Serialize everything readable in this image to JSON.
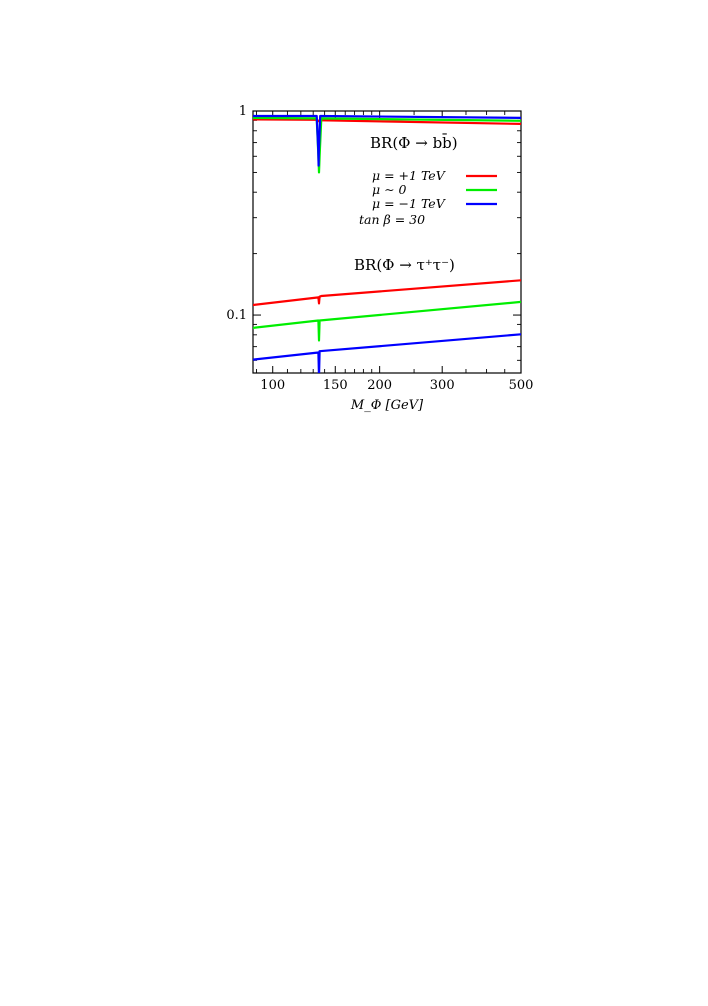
{
  "chart_data": {
    "type": "line",
    "x_scale": "log",
    "y_scale": "log",
    "xlim": [
      88,
      500
    ],
    "ylim": [
      0.052,
      1.0
    ],
    "xlabel": "M_Φ [GeV]",
    "ylabel": "",
    "x_ticks": [
      {
        "value": 100,
        "label": "100"
      },
      {
        "value": 150,
        "label": "150"
      },
      {
        "value": 200,
        "label": "200"
      },
      {
        "value": 300,
        "label": "300"
      },
      {
        "value": 500,
        "label": "500"
      }
    ],
    "y_ticks": [
      {
        "value": 1.0,
        "label": "1"
      },
      {
        "value": 0.1,
        "label": "0.1"
      }
    ],
    "annotations": {
      "bb": "BR(Φ → bb̄)",
      "tautau": "BR(Φ → τ⁺τ⁻)",
      "tanbeta": "tan β = 30"
    },
    "legend_position": "top-right",
    "series": [
      {
        "name": "μ = +1 TeV",
        "color": "#ff0000",
        "group": "bb",
        "x": [
          88,
          133,
          135,
          136,
          137,
          500
        ],
        "y": [
          0.91,
          0.905,
          0.89,
          0.905,
          0.9,
          0.865
        ]
      },
      {
        "name": "μ ∼ 0",
        "color": "#00ee00",
        "group": "bb",
        "x": [
          88,
          133,
          134.5,
          135,
          135.5,
          137,
          500
        ],
        "y": [
          0.925,
          0.92,
          0.6,
          0.5,
          0.6,
          0.92,
          0.895
        ]
      },
      {
        "name": "μ = −1 TeV",
        "color": "#0000ff",
        "group": "bb",
        "x": [
          88,
          133,
          134.3,
          134.6,
          134.9,
          136,
          500
        ],
        "y": [
          0.945,
          0.945,
          0.65,
          0.54,
          0.65,
          0.945,
          0.925
        ]
      },
      {
        "name": "μ = +1 TeV",
        "color": "#ff0000",
        "group": "tautau",
        "x": [
          88,
          134.5,
          135,
          135.5,
          137,
          500
        ],
        "y": [
          0.112,
          0.122,
          0.114,
          0.123,
          0.124,
          0.148
        ]
      },
      {
        "name": "μ ∼ 0",
        "color": "#00ee00",
        "group": "tautau",
        "x": [
          88,
          134.5,
          135,
          135.5,
          500
        ],
        "y": [
          0.0865,
          0.094,
          0.075,
          0.094,
          0.116
        ]
      },
      {
        "name": "μ = −1 TeV",
        "color": "#0000ff",
        "group": "tautau",
        "x": [
          88,
          134.5,
          135,
          135.5,
          500
        ],
        "y": [
          0.0605,
          0.0655,
          0.05,
          0.0665,
          0.0805
        ]
      }
    ],
    "legend": [
      {
        "label": "μ = +1 TeV",
        "color": "#ff0000"
      },
      {
        "label": "μ ∼ 0",
        "color": "#00ee00"
      },
      {
        "label": "μ = −1 TeV",
        "color": "#0000ff"
      }
    ]
  }
}
